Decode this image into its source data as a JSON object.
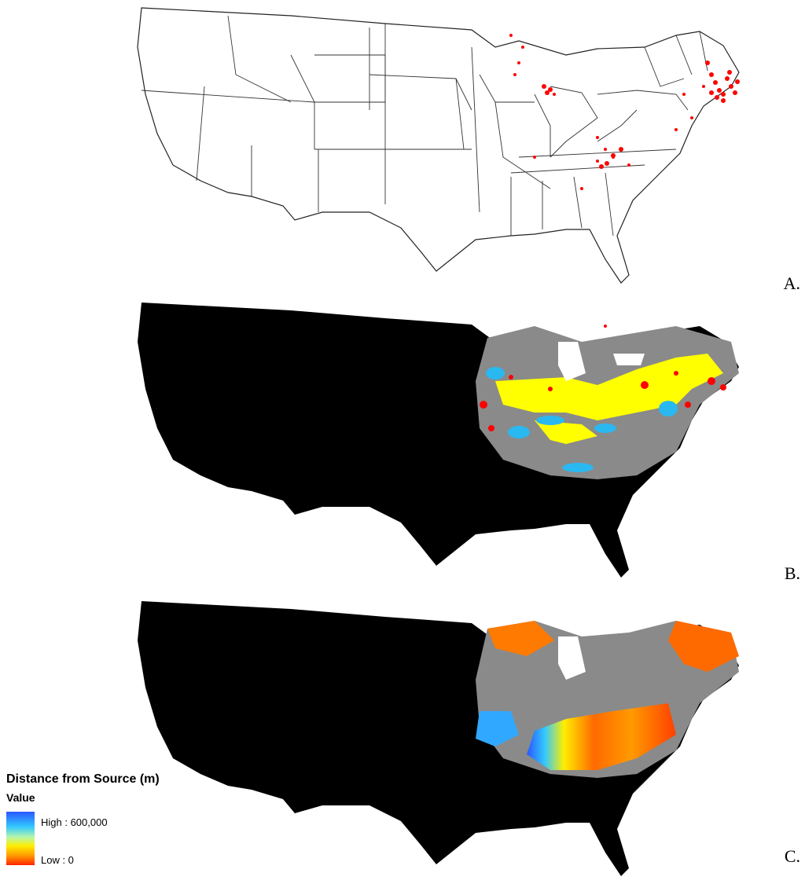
{
  "panels": [
    {
      "label": "A."
    },
    {
      "label": "B."
    },
    {
      "label": "C."
    }
  ],
  "legend": {
    "title": "Distance from Source (m)",
    "subtitle": "Value",
    "high_label": "High : 600,000",
    "low_label": "Low : 0",
    "high_value": 600000,
    "low_value": 0
  },
  "colors": {
    "background_region": "#000000",
    "state_fill": "#ffffff",
    "state_border": "#222222",
    "sample_points": "#ff0000",
    "gray_area": "#8a8a8a",
    "yellow_area": "#ffff00",
    "blue_area": "#2ab8f0"
  }
}
